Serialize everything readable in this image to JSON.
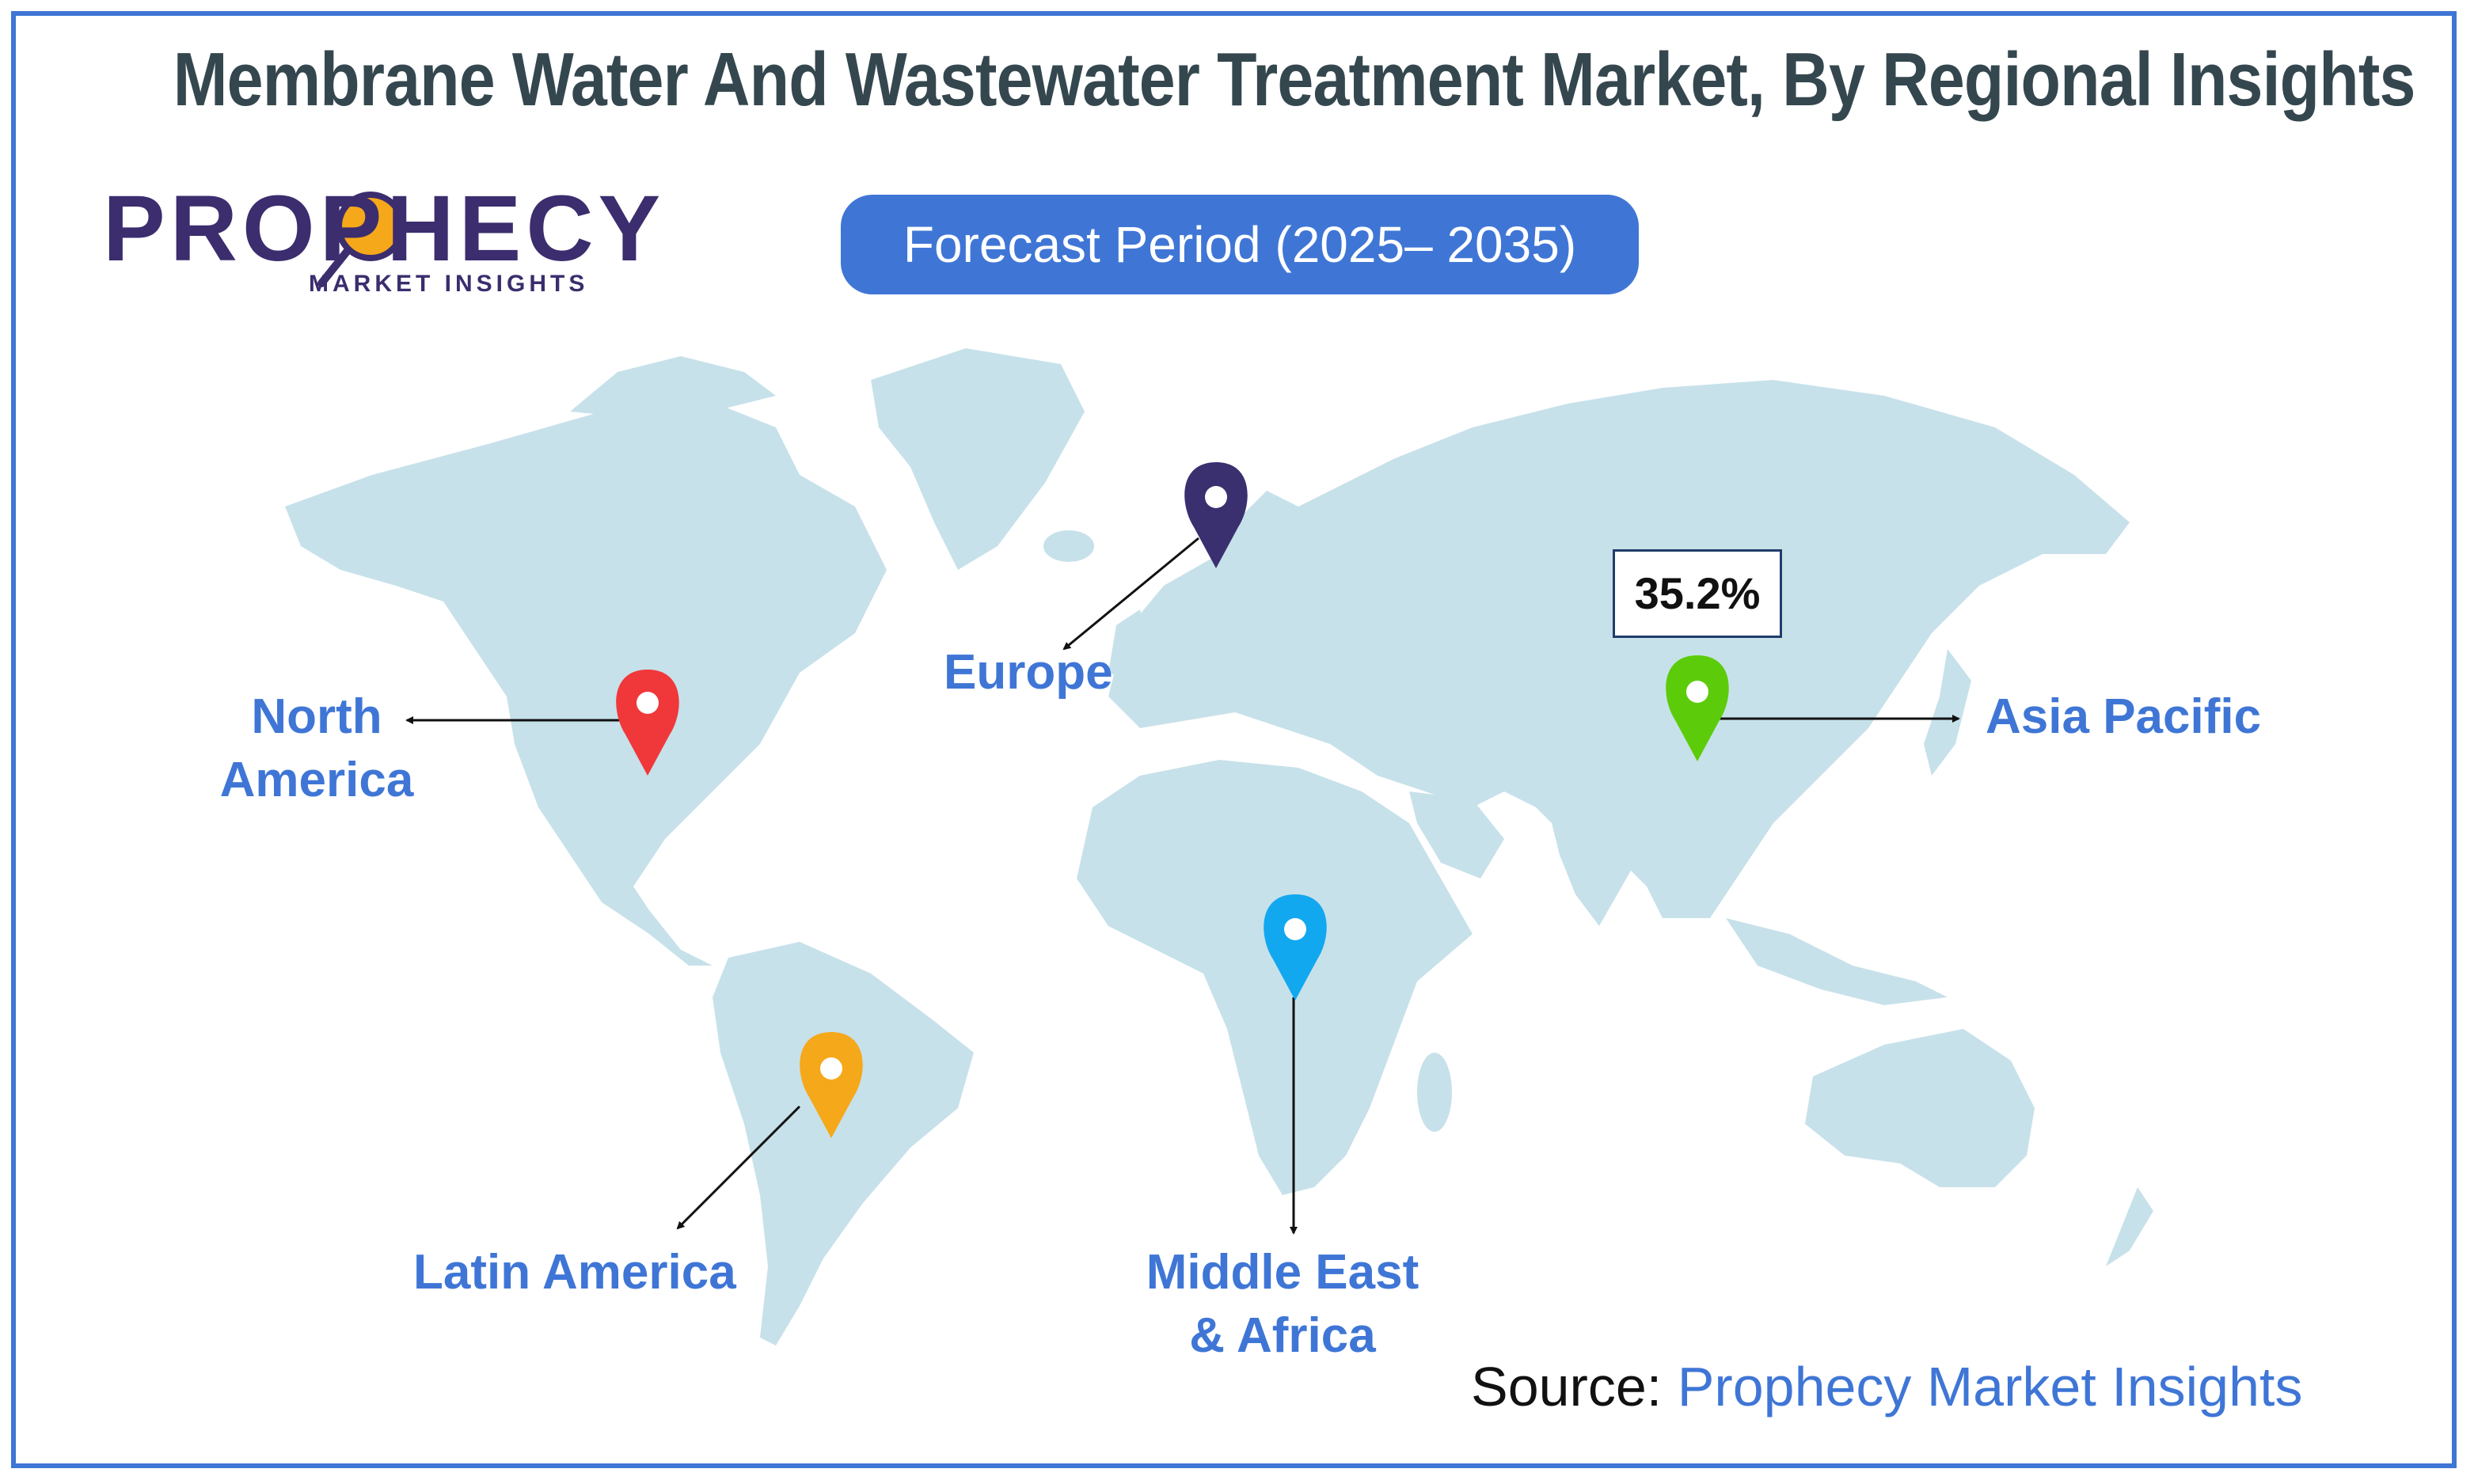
{
  "title": "Membrane Water And Wastewater Treatment Market, By Regional Insights",
  "logo": {
    "name": "PROPHECY",
    "tagline": "MARKET INSIGHTS"
  },
  "forecast_label": "Forecast Period (2025– 2035)",
  "regions": {
    "north_america": {
      "line1": "North",
      "line2": "America",
      "pin_color": "#f0383a"
    },
    "europe": {
      "label": "Europe",
      "pin_color": "#3a2f6f"
    },
    "asia_pacific": {
      "label": "Asia Pacific",
      "pin_color": "#5ccc0a",
      "share": "35.2%"
    },
    "latin_america": {
      "label": "Latin America",
      "pin_color": "#f5a81a"
    },
    "middle_east_africa": {
      "line1": "Middle East",
      "line2": "& Africa",
      "pin_color": "#12a8f0"
    }
  },
  "source": {
    "prefix": "Source:",
    "name": "Prophecy Market Insights"
  },
  "colors": {
    "accent": "#3f76d6",
    "title": "#35474e",
    "land": "#c7e1ea"
  }
}
